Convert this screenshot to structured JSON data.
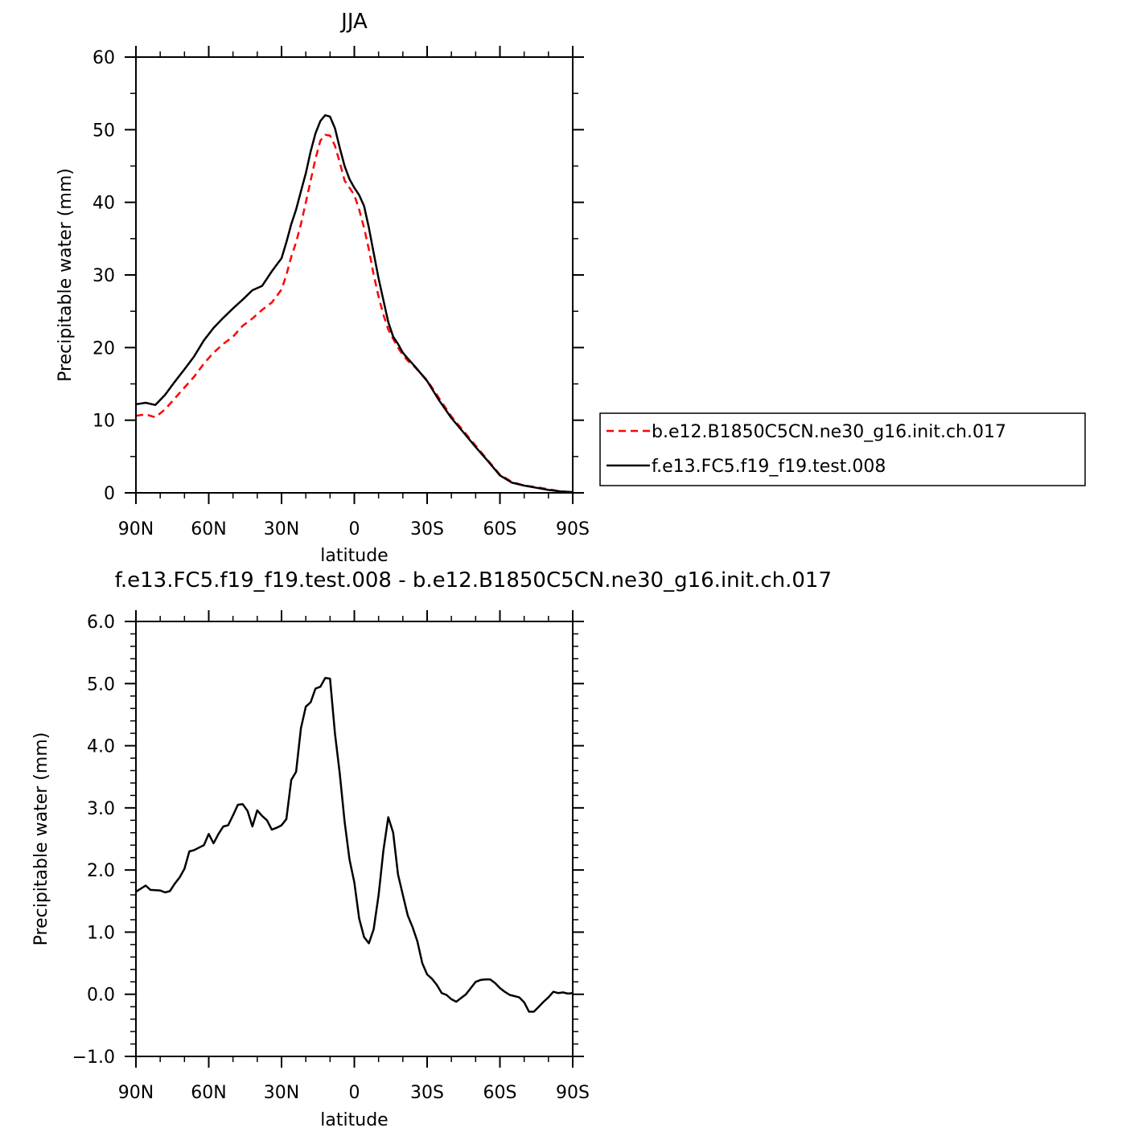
{
  "chart_data": [
    {
      "type": "line",
      "title": "JJA",
      "xlabel": "latitude",
      "ylabel": "Precipitable water (mm)",
      "xlim": [
        90,
        -90
      ],
      "ylim": [
        0,
        60
      ],
      "x_tick_values": [
        90,
        60,
        30,
        0,
        -30,
        -60,
        -90
      ],
      "x_tick_labels": [
        "90N",
        "60N",
        "30N",
        "0",
        "30S",
        "60S",
        "90S"
      ],
      "y_tick_values": [
        0,
        10,
        20,
        30,
        40,
        50,
        60
      ],
      "y_tick_labels": [
        "0",
        "10",
        "20",
        "30",
        "40",
        "50",
        "60"
      ],
      "legend_position": "right",
      "series": [
        {
          "name": "b.e12.B1850C5CN.ne30_g16.init.ch.017",
          "color": "#ff0000",
          "dash": "dashed",
          "x": [
            90,
            86,
            82,
            78,
            74,
            70,
            66,
            62,
            58,
            54,
            50,
            46,
            42,
            38,
            34,
            30,
            28,
            26,
            24,
            22,
            20,
            18,
            16,
            14,
            12,
            10,
            8,
            6,
            4,
            2,
            0,
            -2,
            -4,
            -6,
            -8,
            -10,
            -12,
            -14,
            -16,
            -18,
            -20,
            -22,
            -25,
            -30,
            -35,
            -40,
            -45,
            -50,
            -55,
            -60,
            -65,
            -70,
            -75,
            -80,
            -85,
            -90
          ],
          "y": [
            10.6,
            10.8,
            10.4,
            11.5,
            13.0,
            14.5,
            16.0,
            17.8,
            19.3,
            20.5,
            21.5,
            23.0,
            24.0,
            25.2,
            26.2,
            28.0,
            30.0,
            32.5,
            34.5,
            37.0,
            40.0,
            43.0,
            46.0,
            48.5,
            49.3,
            49.2,
            47.8,
            45.5,
            43.0,
            42.0,
            41.0,
            39.0,
            36.5,
            33.5,
            30.0,
            27.0,
            24.5,
            22.5,
            21.2,
            20.0,
            19.0,
            18.2,
            17.3,
            15.5,
            13.0,
            10.5,
            8.5,
            6.5,
            4.5,
            2.5,
            1.5,
            1.0,
            0.8,
            0.5,
            0.2,
            0.1
          ]
        },
        {
          "name": "f.e13.FC5.f19_f19.test.008",
          "color": "#000000",
          "dash": "solid",
          "x": [
            90,
            86,
            82,
            78,
            74,
            70,
            66,
            62,
            58,
            54,
            50,
            46,
            42,
            38,
            34,
            30,
            28,
            26,
            24,
            22,
            20,
            18,
            16,
            14,
            12,
            10,
            8,
            6,
            4,
            2,
            0,
            -2,
            -4,
            -6,
            -8,
            -10,
            -12,
            -14,
            -16,
            -18,
            -20,
            -22,
            -25,
            -30,
            -35,
            -40,
            -45,
            -50,
            -55,
            -60,
            -65,
            -70,
            -75,
            -80,
            -85,
            -90
          ],
          "y": [
            12.2,
            12.4,
            12.1,
            13.5,
            15.3,
            17.0,
            18.8,
            21.0,
            22.7,
            24.1,
            25.4,
            26.6,
            27.9,
            28.5,
            30.5,
            32.3,
            34.5,
            37.0,
            39.0,
            41.5,
            44.0,
            47.0,
            49.5,
            51.2,
            52.0,
            51.8,
            50.2,
            47.5,
            45.0,
            43.2,
            42.0,
            41.0,
            39.5,
            36.5,
            33.0,
            29.5,
            26.5,
            23.5,
            21.5,
            20.5,
            19.3,
            18.5,
            17.4,
            15.4,
            12.7,
            10.3,
            8.3,
            6.3,
            4.4,
            2.4,
            1.4,
            1.0,
            0.7,
            0.4,
            0.2,
            0.1
          ]
        }
      ]
    },
    {
      "type": "line",
      "title": "f.e13.FC5.f19_f19.test.008 - b.e12.B1850C5CN.ne30_g16.init.ch.017",
      "xlabel": "latitude",
      "ylabel": "Precipitable water (mm)",
      "xlim": [
        90,
        -90
      ],
      "ylim": [
        -1.0,
        6.0
      ],
      "x_tick_values": [
        90,
        60,
        30,
        0,
        -30,
        -60,
        -90
      ],
      "x_tick_labels": [
        "90N",
        "60N",
        "30N",
        "0",
        "30S",
        "60S",
        "90S"
      ],
      "y_tick_values": [
        -1.0,
        0.0,
        1.0,
        2.0,
        3.0,
        4.0,
        5.0,
        6.0
      ],
      "y_tick_labels": [
        "-1.0",
        "0.0",
        "1.0",
        "2.0",
        "3.0",
        "4.0",
        "5.0",
        "6.0"
      ],
      "series": [
        {
          "color": "#000000",
          "dash": "solid",
          "x": [
            90,
            86,
            84,
            80,
            78,
            76,
            74,
            72,
            70,
            68,
            66,
            64,
            62,
            60,
            58,
            56,
            54,
            52,
            50,
            48,
            46,
            44,
            42,
            40,
            38,
            36,
            34,
            32,
            30,
            28,
            26,
            24,
            22,
            20,
            18,
            16,
            14,
            12,
            10,
            8,
            6,
            4,
            2,
            0,
            -2,
            -4,
            -6,
            -8,
            -10,
            -12,
            -14,
            -16,
            -18,
            -20,
            -22,
            -24,
            -26,
            -28,
            -30,
            -32,
            -34,
            -36,
            -38,
            -40,
            -42,
            -44,
            -46,
            -48,
            -50,
            -52,
            -54,
            -56,
            -58,
            -60,
            -62,
            -64,
            -66,
            -68,
            -70,
            -72,
            -74,
            -76,
            -78,
            -80,
            -82,
            -84,
            -86,
            -88,
            -90
          ],
          "y": [
            1.65,
            1.75,
            1.68,
            1.67,
            1.64,
            1.66,
            1.78,
            1.88,
            2.02,
            2.3,
            2.32,
            2.36,
            2.4,
            2.58,
            2.43,
            2.58,
            2.7,
            2.72,
            2.88,
            3.05,
            3.06,
            2.95,
            2.7,
            2.96,
            2.87,
            2.8,
            2.65,
            2.68,
            2.72,
            2.82,
            3.45,
            3.58,
            4.28,
            4.63,
            4.7,
            4.92,
            4.95,
            5.09,
            5.08,
            4.2,
            3.55,
            2.78,
            2.17,
            1.8,
            1.22,
            0.92,
            0.82,
            1.05,
            1.6,
            2.32,
            2.85,
            2.6,
            1.93,
            1.6,
            1.27,
            1.08,
            0.85,
            0.5,
            0.32,
            0.25,
            0.15,
            0.02,
            -0.01,
            -0.08,
            -0.12,
            -0.06,
            0.0,
            0.1,
            0.2,
            0.23,
            0.24,
            0.24,
            0.18,
            0.1,
            0.04,
            -0.01,
            -0.03,
            -0.05,
            -0.13,
            -0.28,
            -0.28,
            -0.2,
            -0.12,
            -0.05,
            0.04,
            0.02,
            0.03,
            0.01,
            0.02
          ]
        }
      ]
    }
  ]
}
